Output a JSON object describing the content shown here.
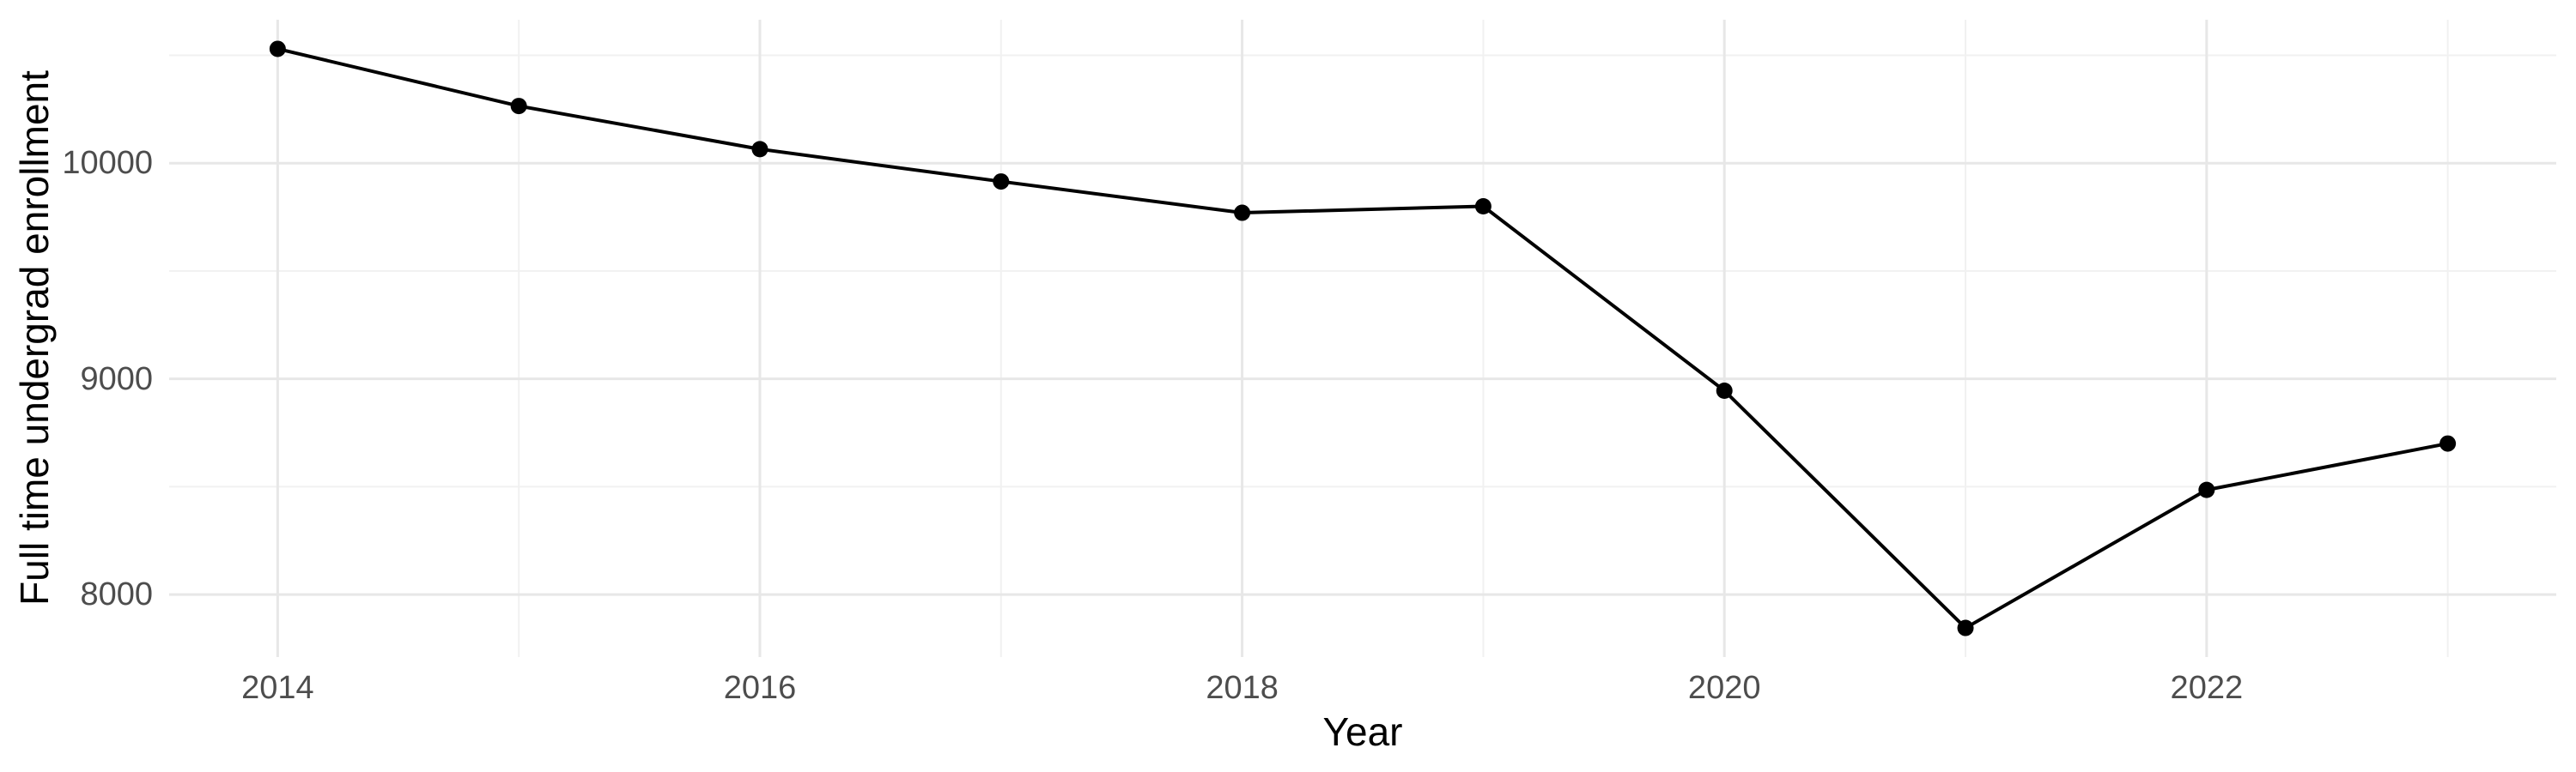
{
  "figure": {
    "background": "#FFFFFF"
  },
  "chart_data": {
    "type": "line",
    "title": "",
    "xlabel": "Year",
    "ylabel": "Full time undergrad enrollment",
    "x": [
      2014,
      2015,
      2016,
      2017,
      2018,
      2019,
      2020,
      2021,
      2022,
      2023
    ],
    "values": [
      10530,
      10265,
      10065,
      9915,
      9770,
      9800,
      8945,
      7845,
      8485,
      8700
    ],
    "series": [
      {
        "name": "Full time undergrad enrollment",
        "values": [
          10530,
          10265,
          10065,
          9915,
          9770,
          9800,
          8945,
          7845,
          8485,
          8700
        ]
      }
    ],
    "xlim": [
      2013.55,
      2023.45
    ],
    "ylim": [
      7710,
      10665
    ],
    "x_major_ticks": [
      2014,
      2016,
      2018,
      2020,
      2022
    ],
    "x_major_tick_labels": [
      "2014",
      "2016",
      "2018",
      "2020",
      "2022"
    ],
    "x_minor_ticks": [
      2015,
      2017,
      2019,
      2021,
      2023
    ],
    "y_major_ticks": [
      8000,
      9000,
      10000
    ],
    "y_major_tick_labels": [
      "8000",
      "9000",
      "10000"
    ],
    "y_minor_ticks": [
      8500,
      9500,
      10500
    ],
    "grid": "major-and-minor",
    "legend": false,
    "marker": "filled-circle",
    "style": "ggplot-minimal",
    "colors": {
      "line": "#000000",
      "point": "#000000",
      "grid_major": "#E7E7E7",
      "grid_minor": "#F1F1F1",
      "tick_text": "#4D4D4D",
      "title_text": "#000000",
      "background": "#FFFFFF"
    }
  }
}
